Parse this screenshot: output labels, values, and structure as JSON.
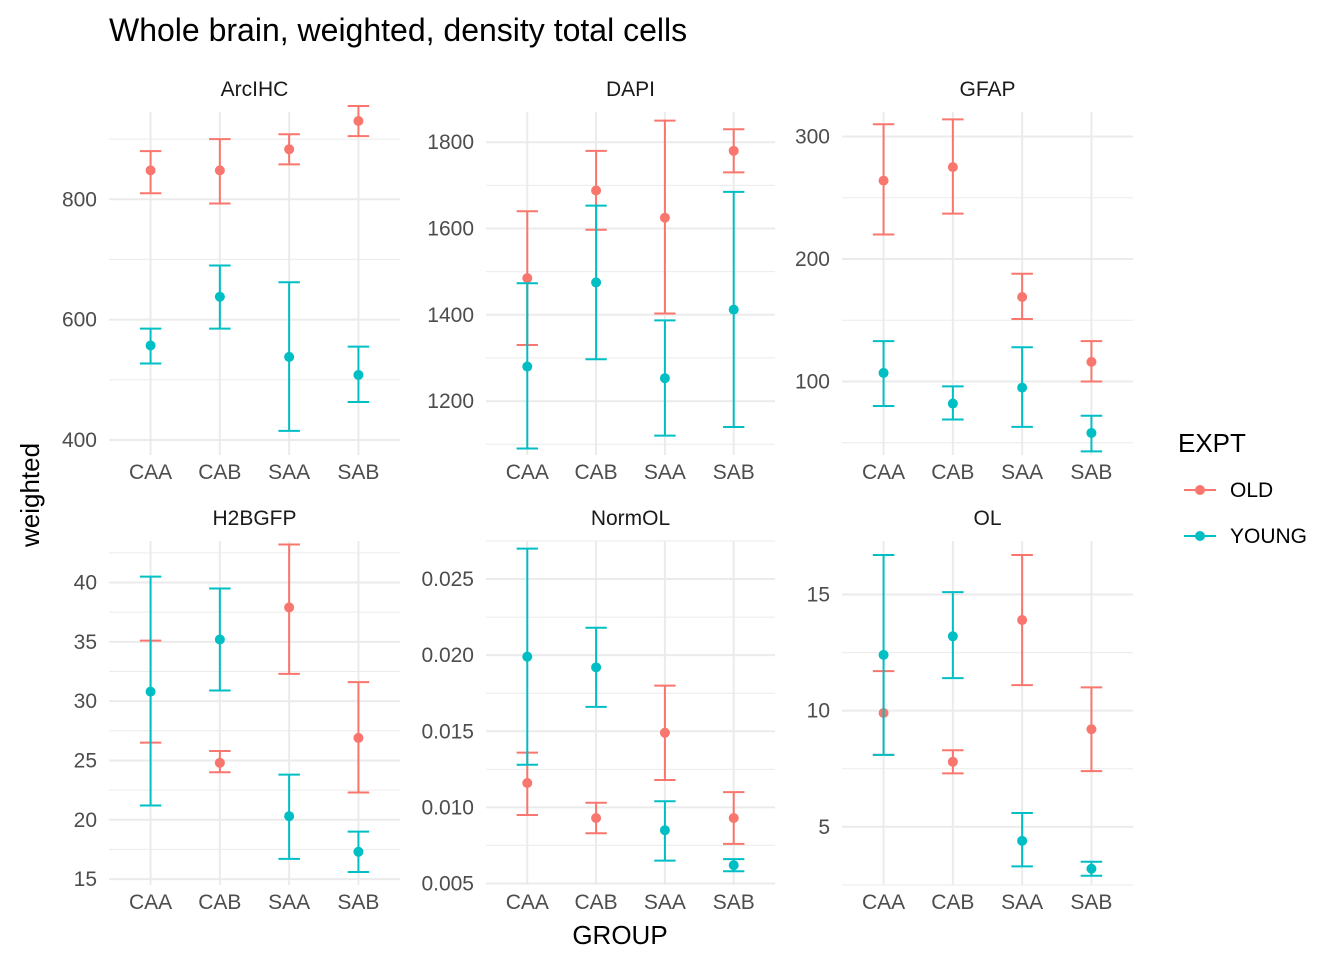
{
  "chart_data": {
    "type": "errorbar",
    "title": "Whole brain, weighted, density total cells",
    "xlabel": "GROUP",
    "ylabel": "weighted",
    "categories": [
      "CAA",
      "CAB",
      "SAA",
      "SAB"
    ],
    "legend": {
      "title": "EXPT",
      "position": "right",
      "entries": [
        {
          "name": "OLD",
          "color": "#F8766D"
        },
        {
          "name": "YOUNG",
          "color": "#00BFC4"
        }
      ]
    },
    "grid": true,
    "panels": [
      {
        "name": "ArcIHC",
        "ylim": [
          375,
          945
        ],
        "yticks": [
          400,
          600,
          800
        ],
        "ytick_labels": [
          "400",
          "600",
          "800"
        ],
        "series": [
          {
            "name": "OLD",
            "mean": [
              848,
              848,
              883,
              930
            ],
            "lower": [
              810,
              793,
              858,
              905
            ],
            "upper": [
              880,
              900,
              908,
              955
            ]
          },
          {
            "name": "YOUNG",
            "mean": [
              557,
              638,
              538,
              508
            ],
            "lower": [
              527,
              585,
              415,
              463
            ],
            "upper": [
              585,
              690,
              662,
              555
            ]
          }
        ]
      },
      {
        "name": "DAPI",
        "ylim": [
          1075,
          1870
        ],
        "yticks": [
          1200,
          1400,
          1600,
          1800
        ],
        "ytick_labels": [
          "1200",
          "1400",
          "1600",
          "1800"
        ],
        "series": [
          {
            "name": "OLD",
            "mean": [
              1485,
              1688,
              1625,
              1780
            ],
            "lower": [
              1330,
              1597,
              1403,
              1730
            ],
            "upper": [
              1640,
              1780,
              1850,
              1830
            ]
          },
          {
            "name": "YOUNG",
            "mean": [
              1280,
              1475,
              1253,
              1412
            ],
            "lower": [
              1090,
              1297,
              1120,
              1140
            ],
            "upper": [
              1473,
              1653,
              1387,
              1685
            ]
          }
        ]
      },
      {
        "name": "GFAP",
        "ylim": [
          40,
          320
        ],
        "yticks": [
          100,
          200,
          300
        ],
        "ytick_labels": [
          "100",
          "200",
          "300"
        ],
        "series": [
          {
            "name": "OLD",
            "mean": [
              264,
              275,
              169,
              116
            ],
            "lower": [
              220,
              237,
              151,
              100
            ],
            "upper": [
              310,
              314,
              188,
              133
            ]
          },
          {
            "name": "YOUNG",
            "mean": [
              107,
              82,
              95,
              58
            ],
            "lower": [
              80,
              69,
              63,
              43
            ],
            "upper": [
              133,
              96,
              128,
              72
            ]
          }
        ]
      },
      {
        "name": "H2BGFP",
        "ylim": [
          14.5,
          43.5
        ],
        "yticks": [
          15,
          20,
          25,
          30,
          35,
          40
        ],
        "ytick_labels": [
          "15",
          "20",
          "25",
          "30",
          "35",
          "40"
        ],
        "series": [
          {
            "name": "OLD",
            "mean": [
              null,
              24.8,
              37.9,
              26.9
            ],
            "lower": [
              26.5,
              24.0,
              32.3,
              22.3
            ],
            "upper": [
              35.1,
              25.8,
              43.2,
              31.6
            ]
          },
          {
            "name": "YOUNG",
            "mean": [
              30.8,
              35.2,
              20.3,
              17.3
            ],
            "lower": [
              21.2,
              30.9,
              16.7,
              15.6
            ],
            "upper": [
              40.5,
              39.5,
              23.8,
              19.0
            ]
          }
        ]
      },
      {
        "name": "NormOL",
        "ylim": [
          0.0049,
          0.0275
        ],
        "yticks": [
          0.005,
          0.01,
          0.015,
          0.02,
          0.025
        ],
        "ytick_labels": [
          "0.005",
          "0.010",
          "0.015",
          "0.020",
          "0.025"
        ],
        "series": [
          {
            "name": "OLD",
            "mean": [
              0.0116,
              0.0093,
              0.0149,
              0.0093
            ],
            "lower": [
              0.0095,
              0.0083,
              0.0118,
              0.0076
            ],
            "upper": [
              0.0136,
              0.0103,
              0.018,
              0.011
            ]
          },
          {
            "name": "YOUNG",
            "mean": [
              0.0199,
              0.0192,
              0.0085,
              0.0062
            ],
            "lower": [
              0.0128,
              0.0166,
              0.0065,
              0.0058
            ],
            "upper": [
              0.027,
              0.0218,
              0.0104,
              0.0066
            ]
          }
        ]
      },
      {
        "name": "OL",
        "ylim": [
          2.5,
          17.3
        ],
        "yticks": [
          5,
          10,
          15
        ],
        "ytick_labels": [
          "5",
          "10",
          "15"
        ],
        "series": [
          {
            "name": "OLD",
            "mean": [
              9.9,
              7.8,
              13.9,
              9.2
            ],
            "lower": [
              8.1,
              7.3,
              11.1,
              7.4
            ],
            "upper": [
              11.7,
              8.3,
              16.7,
              11.0
            ]
          },
          {
            "name": "YOUNG",
            "mean": [
              12.4,
              13.2,
              4.4,
              3.2
            ],
            "lower": [
              8.1,
              11.4,
              3.3,
              2.9
            ],
            "upper": [
              16.7,
              15.1,
              5.6,
              3.5
            ]
          }
        ]
      }
    ]
  }
}
